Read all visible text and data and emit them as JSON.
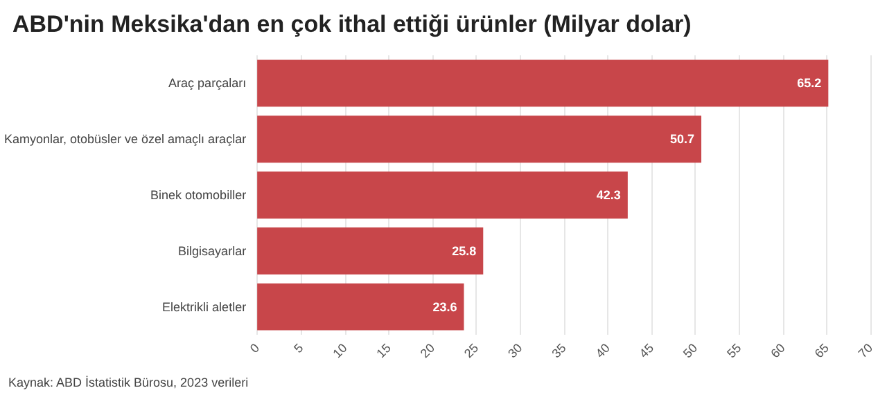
{
  "chart_data": {
    "type": "bar",
    "orientation": "horizontal",
    "title": "ABD'nin Meksika'dan en çok ithal ettiği ürünler (Milyar dolar)",
    "categories": [
      "Araç parçaları",
      "Kamyonlar, otobüsler ve özel amaçlı araçlar",
      "Binek otomobiller",
      "Bilgisayarlar",
      "Elektrikli aletler"
    ],
    "values": [
      65.2,
      50.7,
      42.3,
      25.8,
      23.6
    ],
    "color": "#c8464a",
    "xlim": [
      0,
      70
    ],
    "xticks": [
      0,
      5,
      10,
      15,
      20,
      25,
      30,
      35,
      40,
      45,
      50,
      55,
      60,
      65,
      70
    ],
    "grid": "x",
    "data_labels": true,
    "annotations": [
      "Kaynak: ABD İstatistik Bürosu, 2023 verileri"
    ]
  }
}
